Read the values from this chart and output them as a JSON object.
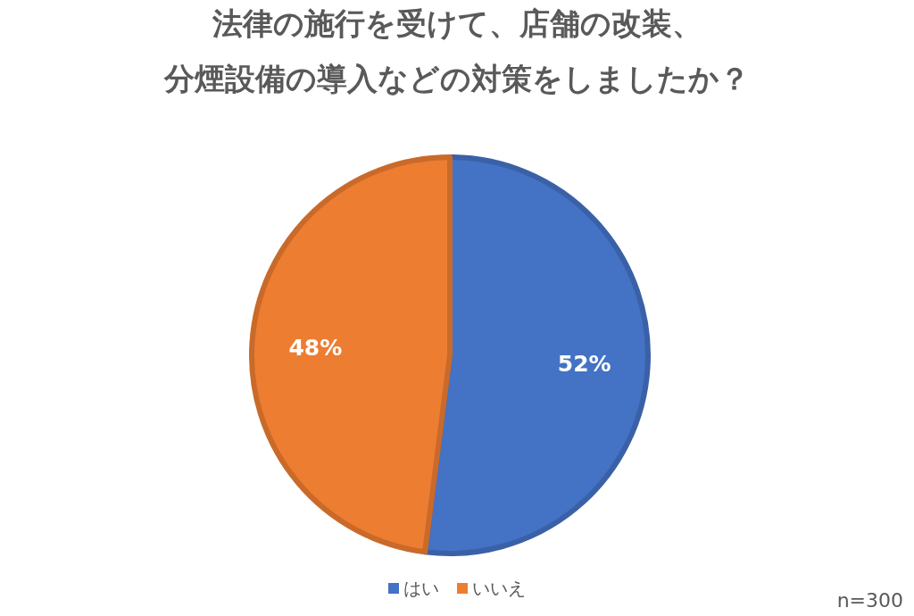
{
  "chart_data": {
    "type": "pie",
    "title": "法律の施行を受けて、店舗の改装、",
    "subtitle": "分煙設備の導入などの対策をしましたか？",
    "categories": [
      "はい",
      "いいえ"
    ],
    "values": [
      52,
      48
    ],
    "colors": [
      "#4472c4",
      "#ed7d31"
    ],
    "value_labels": [
      "52%",
      "48%"
    ],
    "legend": "bottom",
    "annotations": [
      "n=300"
    ]
  }
}
